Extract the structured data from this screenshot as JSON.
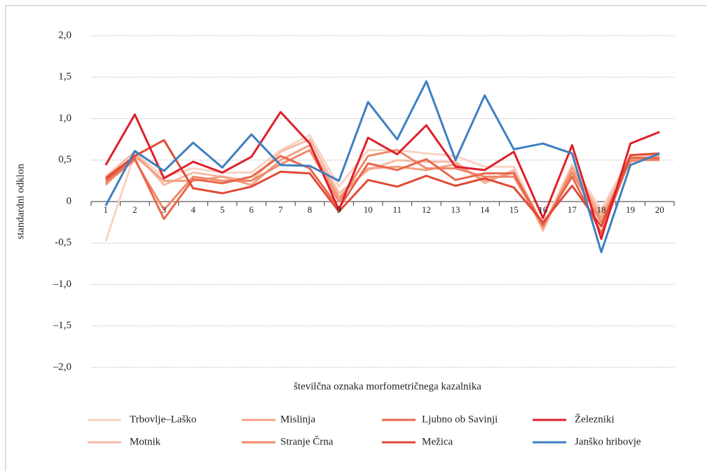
{
  "chart_data": {
    "type": "line",
    "y_label": "standardni odklon",
    "x_label": "številčna oznaka morfometričnega kazalnika",
    "categories": [
      "1",
      "2",
      "3",
      "4",
      "5",
      "6",
      "7",
      "8",
      "9",
      "10",
      "11",
      "12",
      "13",
      "14",
      "15",
      "16",
      "17",
      "18",
      "19",
      "20"
    ],
    "ylim": [
      -2,
      2
    ],
    "yticks": [
      {
        "value": 2,
        "label": "2,0"
      },
      {
        "value": 1.5,
        "label": "1,5"
      },
      {
        "value": 1,
        "label": "1,0"
      },
      {
        "value": 0.5,
        "label": "0,5"
      },
      0,
      {
        "value": -0.5,
        "label": "-0,5"
      },
      {
        "value": -1,
        "label": "–1,0"
      },
      {
        "value": -1.5,
        "label": "–1,5"
      },
      {
        "value": -2,
        "label": "–2,0"
      }
    ],
    "grid": true,
    "series": [
      {
        "name": "Trbovlje–Laško",
        "color": "#f9d3c3",
        "values": [
          -0.48,
          0.58,
          0.3,
          0.4,
          0.35,
          0.35,
          0.62,
          0.8,
          0.18,
          0.62,
          0.62,
          0.58,
          0.55,
          0.42,
          0.42,
          -0.3,
          0.45,
          -0.1,
          0.55,
          0.56
        ]
      },
      {
        "name": "Motnik",
        "color": "#f6bba5",
        "values": [
          0.3,
          0.6,
          0.2,
          0.35,
          0.3,
          0.25,
          0.6,
          0.75,
          0.1,
          0.38,
          0.5,
          0.48,
          0.48,
          0.22,
          0.38,
          -0.35,
          0.42,
          -0.15,
          0.52,
          0.55
        ]
      },
      {
        "name": "Mislinja",
        "color": "#f3a083",
        "values": [
          0.2,
          0.55,
          0.25,
          0.25,
          0.3,
          0.2,
          0.5,
          0.68,
          0.05,
          0.4,
          0.42,
          0.38,
          0.45,
          0.25,
          0.35,
          -0.32,
          0.4,
          -0.2,
          0.48,
          0.55
        ]
      },
      {
        "name": "Stranje Črna",
        "color": "#ef896a",
        "values": [
          0.22,
          0.5,
          -0.1,
          0.3,
          0.25,
          0.25,
          0.45,
          0.62,
          0.0,
          0.55,
          0.62,
          0.4,
          0.4,
          0.3,
          0.3,
          -0.3,
          0.35,
          -0.25,
          0.5,
          0.5
        ]
      },
      {
        "name": "Ljubno ob Savinji",
        "color": "#e8674a",
        "values": [
          0.25,
          0.52,
          -0.21,
          0.27,
          0.22,
          0.3,
          0.55,
          0.4,
          -0.08,
          0.46,
          0.38,
          0.51,
          0.26,
          0.34,
          0.34,
          -0.28,
          0.3,
          -0.38,
          0.53,
          0.52
        ]
      },
      {
        "name": "Mežica",
        "color": "#e04a35",
        "values": [
          0.28,
          0.55,
          0.74,
          0.16,
          0.1,
          0.18,
          0.36,
          0.34,
          -0.12,
          0.26,
          0.18,
          0.31,
          0.19,
          0.28,
          0.17,
          -0.25,
          0.19,
          -0.3,
          0.56,
          0.58
        ]
      },
      {
        "name": "Železniki",
        "color": "#df1f2a",
        "values": [
          0.44,
          1.05,
          0.28,
          0.48,
          0.35,
          0.54,
          1.08,
          0.7,
          -0.1,
          0.77,
          0.57,
          0.92,
          0.42,
          0.38,
          0.6,
          -0.2,
          0.68,
          -0.45,
          0.7,
          0.84
        ]
      },
      {
        "name": "Janško hribovje",
        "color": "#3e7fc1",
        "values": [
          -0.05,
          0.61,
          0.37,
          0.71,
          0.41,
          0.81,
          0.44,
          0.43,
          0.25,
          1.2,
          0.75,
          1.45,
          0.5,
          1.28,
          0.63,
          0.7,
          0.58,
          -0.61,
          0.44,
          0.58
        ]
      }
    ]
  }
}
